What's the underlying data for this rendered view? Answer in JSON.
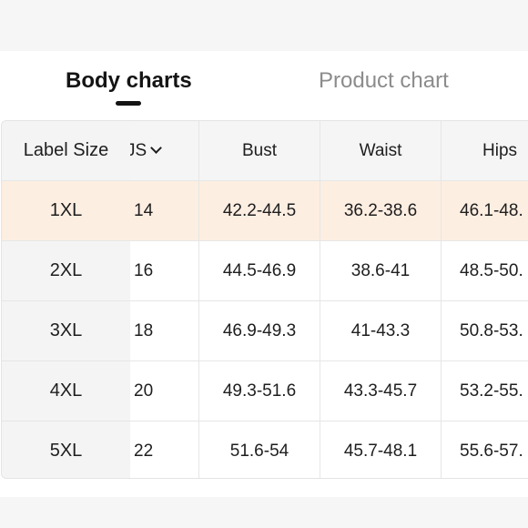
{
  "tabs": {
    "body_charts": "Body charts",
    "product_chart": "Product chart"
  },
  "table": {
    "headers": {
      "label_size": "Label Size",
      "us": "JS",
      "bust": "Bust",
      "waist": "Waist",
      "hips": "Hips"
    },
    "rows": [
      {
        "label": "1XL",
        "us": "14",
        "bust": "42.2-44.5",
        "waist": "36.2-38.6",
        "hips": "46.1-48.",
        "highlighted": true
      },
      {
        "label": "2XL",
        "us": "16",
        "bust": "44.5-46.9",
        "waist": "38.6-41",
        "hips": "48.5-50."
      },
      {
        "label": "3XL",
        "us": "18",
        "bust": "46.9-49.3",
        "waist": "41-43.3",
        "hips": "50.8-53."
      },
      {
        "label": "4XL",
        "us": "20",
        "bust": "49.3-51.6",
        "waist": "43.3-45.7",
        "hips": "53.2-55."
      },
      {
        "label": "5XL",
        "us": "22",
        "bust": "51.6-54",
        "waist": "45.7-48.1",
        "hips": "55.6-57."
      }
    ]
  },
  "colors": {
    "highlight_row": "#fdeee2",
    "active_tab": "#141414",
    "inactive_tab": "#8c8c8c",
    "header_bg": "#f5f5f5"
  },
  "icons": {
    "unit_dropdown": "chevron-down-icon"
  }
}
